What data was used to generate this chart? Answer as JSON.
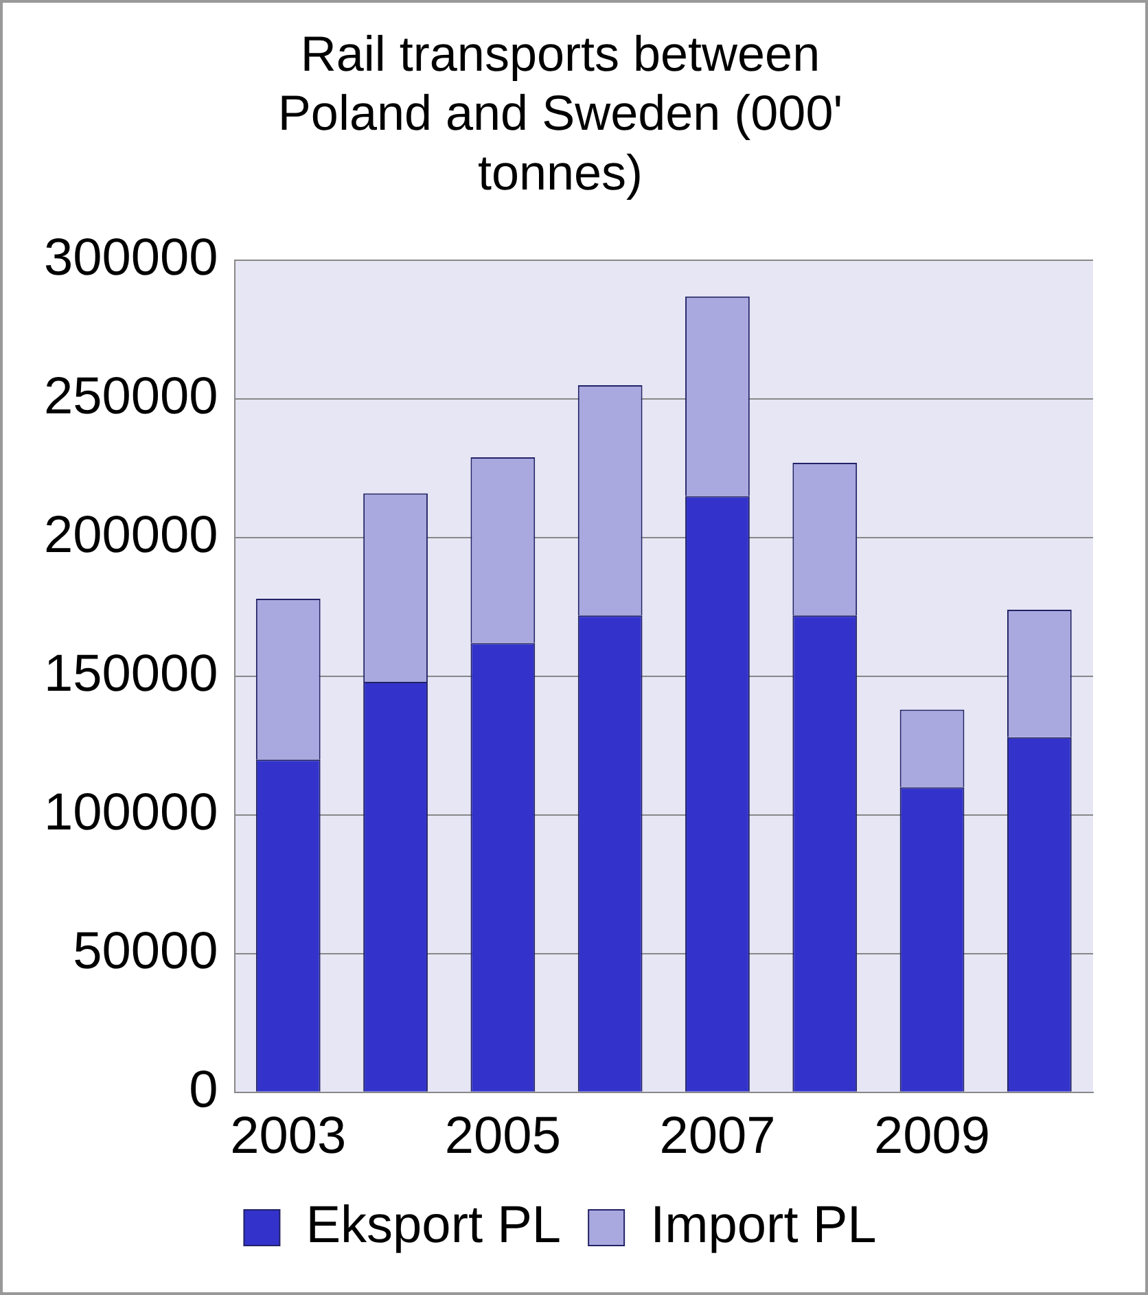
{
  "chart_data": {
    "type": "bar",
    "title": "Rail transports between Poland and Sweden (000' tonnes)",
    "categories": [
      "2003",
      null,
      "2005",
      null,
      "2007",
      null,
      "2009",
      null
    ],
    "series": [
      {
        "name": "Eksport PL",
        "color": "#3333cc",
        "values": [
          120000,
          148000,
          162000,
          172000,
          215000,
          172000,
          110000,
          128000
        ]
      },
      {
        "name": "Import PL",
        "color": "#a9a9e0",
        "values": [
          58000,
          68000,
          67000,
          83000,
          72000,
          55000,
          28000,
          46000
        ]
      }
    ],
    "stacked": true,
    "ylim": [
      0,
      300000
    ],
    "yticks": [
      0,
      50000,
      100000,
      150000,
      200000,
      250000,
      300000
    ],
    "grid": "y",
    "legend": "bottom"
  }
}
